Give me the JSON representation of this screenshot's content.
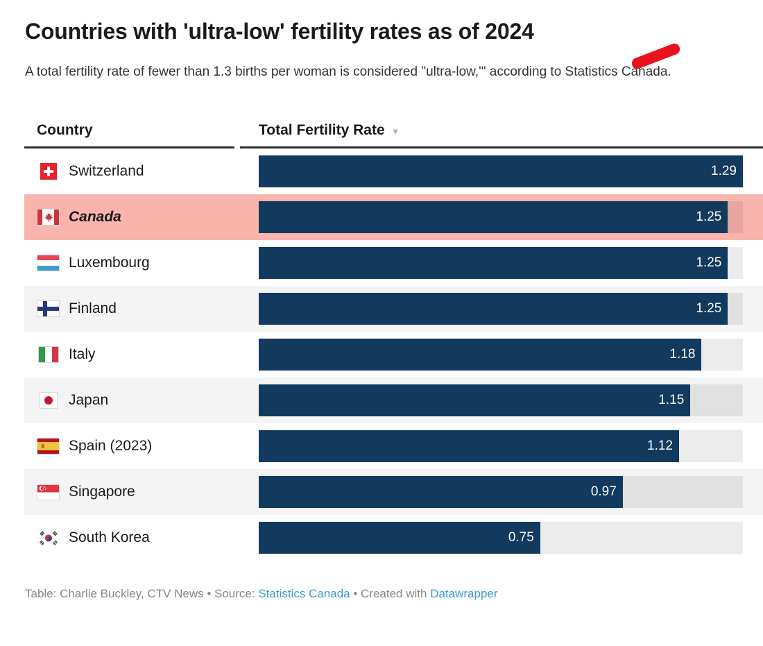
{
  "title": "Countries with 'ultra-low' fertility rates as of 2024",
  "subtitle": "A total fertility rate of fewer than 1.3 births per woman is considered \"ultra-low,'\" according to Statistics Canada.",
  "header": {
    "country_column": "Country",
    "rate_column": "Total Fertility Rate",
    "sort_indicator": "▼"
  },
  "rows": [
    {
      "country": "Switzerland",
      "flag_icon": "switzerland-flag-icon",
      "flag": "ch",
      "value": 1.29,
      "display": "1.29",
      "highlight": false
    },
    {
      "country": "Canada",
      "flag_icon": "canada-flag-icon",
      "flag": "ca",
      "value": 1.25,
      "display": "1.25",
      "highlight": true
    },
    {
      "country": "Luxembourg",
      "flag_icon": "luxembourg-flag-icon",
      "flag": "lu",
      "value": 1.25,
      "display": "1.25",
      "highlight": false
    },
    {
      "country": "Finland",
      "flag_icon": "finland-flag-icon",
      "flag": "fi",
      "value": 1.25,
      "display": "1.25",
      "highlight": false
    },
    {
      "country": "Italy",
      "flag_icon": "italy-flag-icon",
      "flag": "it",
      "value": 1.18,
      "display": "1.18",
      "highlight": false
    },
    {
      "country": "Japan",
      "flag_icon": "japan-flag-icon",
      "flag": "jp",
      "value": 1.15,
      "display": "1.15",
      "highlight": false
    },
    {
      "country": "Spain (2023)",
      "flag_icon": "spain-flag-icon",
      "flag": "es",
      "value": 1.12,
      "display": "1.12",
      "highlight": false
    },
    {
      "country": "Singapore",
      "flag_icon": "singapore-flag-icon",
      "flag": "sg",
      "value": 0.97,
      "display": "0.97",
      "highlight": false
    },
    {
      "country": "South Korea",
      "flag_icon": "south-korea-flag-icon",
      "flag": "kr",
      "value": 0.75,
      "display": "0.75",
      "highlight": false
    }
  ],
  "footer": {
    "credit": "Table: Charlie Buckley, CTV News",
    "separator": " • ",
    "source_label": "Source: ",
    "source_link": "Statistics Canada",
    "created_label": "Created with ",
    "tool_link": "Datawrapper"
  },
  "colors": {
    "bar": "#123a5e",
    "highlight_row": "#f9b4ac",
    "stripe_row": "#f4f4f4",
    "track": "rgba(0,0,0,0.075)",
    "marker": "#e8121c",
    "link": "#3b9bd1"
  },
  "chart_data": {
    "type": "bar",
    "orientation": "horizontal",
    "categories": [
      "Switzerland",
      "Canada",
      "Luxembourg",
      "Finland",
      "Italy",
      "Japan",
      "Spain (2023)",
      "Singapore",
      "South Korea"
    ],
    "values": [
      1.29,
      1.25,
      1.25,
      1.25,
      1.18,
      1.15,
      1.12,
      0.97,
      0.75
    ],
    "title": "Countries with 'ultra-low' fertility rates as of 2024",
    "xlabel": "Total Fertility Rate",
    "ylabel": "Country",
    "xlim": [
      0,
      1.29
    ],
    "value_labels": true,
    "highlighted_category": "Canada",
    "sorted": "descending",
    "grid": false,
    "legend": false
  }
}
